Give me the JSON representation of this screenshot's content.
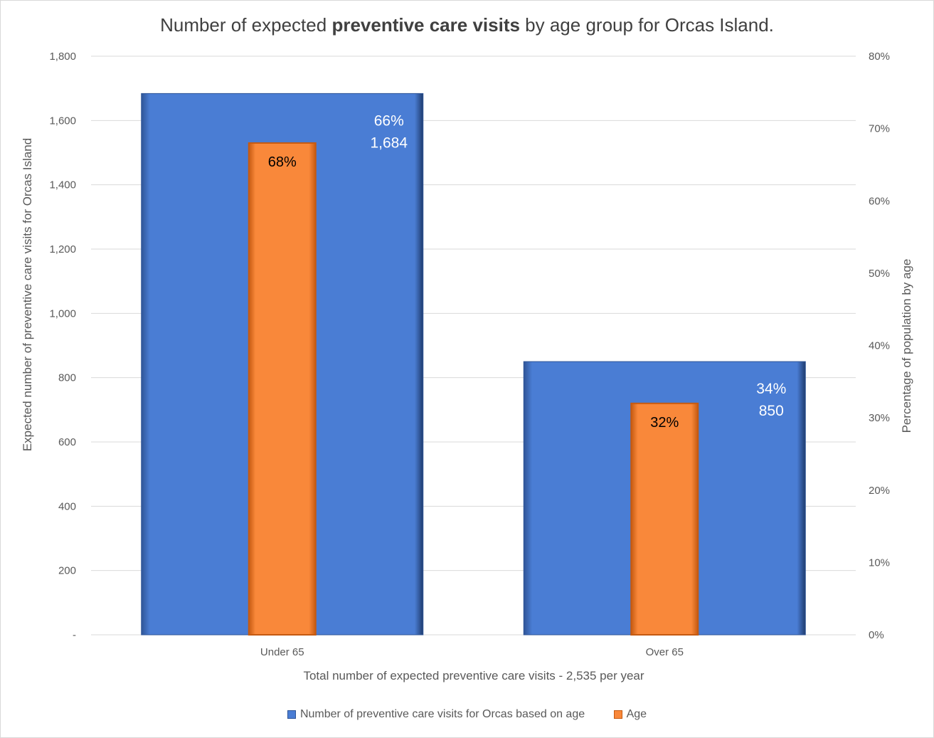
{
  "chart_data": {
    "type": "bar",
    "title_prefix": "Number of expected ",
    "title_bold": "preventive care visits",
    "title_suffix": " by age group for Orcas Island.",
    "categories": [
      "Under 65",
      "Over 65"
    ],
    "xlabel": "Total number of expected preventive care visits - 2,535 per year",
    "ylabel": "Expected number of preventive care visits for Orcas Island",
    "y2label": "Percentage of population by age",
    "ylim": [
      0,
      1800
    ],
    "y2lim": [
      0,
      80
    ],
    "y_ticks": [
      {
        "value": 0,
        "label": "-"
      },
      {
        "value": 200,
        "label": "200"
      },
      {
        "value": 400,
        "label": "400"
      },
      {
        "value": 600,
        "label": "600"
      },
      {
        "value": 800,
        "label": "800"
      },
      {
        "value": 1000,
        "label": "1,000"
      },
      {
        "value": 1200,
        "label": "1,200"
      },
      {
        "value": 1400,
        "label": "1,400"
      },
      {
        "value": 1600,
        "label": "1,600"
      },
      {
        "value": 1800,
        "label": "1,800"
      }
    ],
    "y2_ticks": [
      {
        "value": 0,
        "label": "0%"
      },
      {
        "value": 10,
        "label": "10%"
      },
      {
        "value": 20,
        "label": "20%"
      },
      {
        "value": 30,
        "label": "30%"
      },
      {
        "value": 40,
        "label": "40%"
      },
      {
        "value": 50,
        "label": "50%"
      },
      {
        "value": 60,
        "label": "60%"
      },
      {
        "value": 70,
        "label": "70%"
      },
      {
        "value": 80,
        "label": "80%"
      }
    ],
    "grid": true,
    "legend_position": "bottom",
    "series": [
      {
        "name": "Number of preventive care visits for Orcas based on age",
        "axis": "primary",
        "color": "#4a7dd4",
        "values": [
          1684,
          850
        ],
        "labels_top": [
          "66%",
          "34%"
        ],
        "labels_bottom": [
          "1,684",
          "850"
        ]
      },
      {
        "name": "Age",
        "axis": "secondary",
        "color": "#f9883a",
        "values": [
          68,
          32
        ],
        "labels": [
          "68%",
          "32%"
        ]
      }
    ]
  }
}
